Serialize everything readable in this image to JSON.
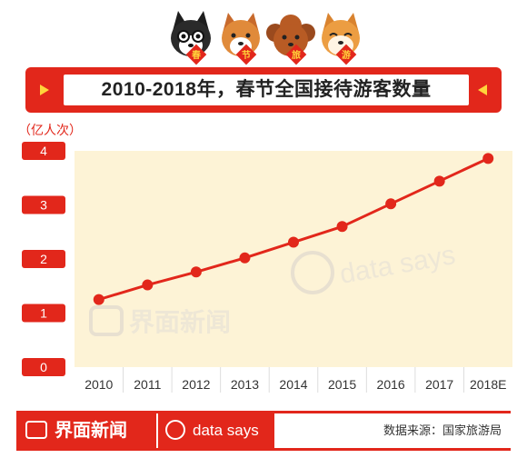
{
  "header": {
    "title": "2010-2018年，春节全国接待游客数量",
    "badges": [
      "春",
      "节",
      "旅",
      "游"
    ]
  },
  "footer": {
    "brand": "界面新闻",
    "sub_brand": "data says",
    "source": "数据来源：国家旅游局"
  },
  "watermark": {
    "brand": "界面新闻",
    "sub_brand": "data says"
  },
  "colors": {
    "accent": "#e2271b",
    "plot_bg": "#fdf3d6",
    "highlight": "#ffd43b"
  },
  "chart_data": {
    "type": "line",
    "ylabel": "（亿人次）",
    "categories": [
      "2010",
      "2011",
      "2012",
      "2013",
      "2014",
      "2015",
      "2016",
      "2017",
      "2018E"
    ],
    "series": [
      {
        "values": [
          1.25,
          1.52,
          1.76,
          2.02,
          2.31,
          2.6,
          3.02,
          3.44,
          3.86
        ]
      }
    ],
    "ylim": [
      0,
      4
    ],
    "yticks": [
      0,
      1,
      2,
      3,
      4
    ],
    "grid": false,
    "legend": "none"
  }
}
